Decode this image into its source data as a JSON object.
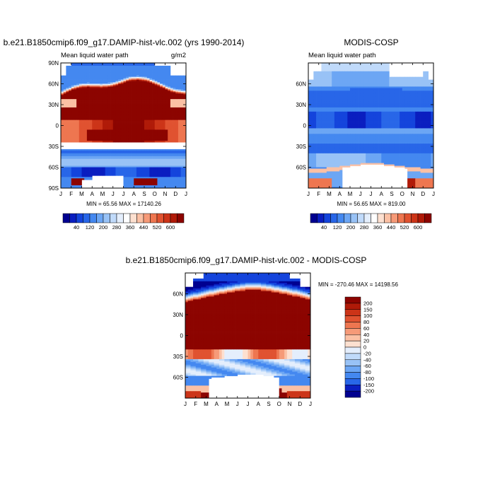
{
  "palette": [
    "#000090",
    "#0a1ec0",
    "#1444dc",
    "#2866e8",
    "#4488f0",
    "#6ca6f4",
    "#98c2f6",
    "#c0dafa",
    "#e4eefc",
    "#ffffff",
    "#fde0d0",
    "#fbc0a4",
    "#f69a78",
    "#ee7650",
    "#e05230",
    "#cc3418",
    "#b01a08",
    "#8c0400"
  ],
  "chart_data": [
    {
      "id": "model",
      "type": "heatmap",
      "title": "b.e21.B1850cmip6.f09_g17.DAMIP-hist-vlc.002 (yrs 1990-2014)",
      "left_label": "Mean liquid water path",
      "right_label": "g/m2",
      "stats": "MIN = 65.56 MAX = 17140.26",
      "x_ticks": [
        "J",
        "F",
        "M",
        "A",
        "M",
        "J",
        "J",
        "A",
        "S",
        "O",
        "N",
        "D",
        "J"
      ],
      "y_ticks": [
        "90N",
        "60N",
        "30N",
        "0",
        "30S",
        "60S",
        "90S"
      ],
      "y_range": [
        -90,
        90
      ],
      "colorbar": {
        "orientation": "horizontal",
        "labels": [
          "40",
          "120",
          "200",
          "280",
          "360",
          "440",
          "520",
          "600"
        ],
        "levels": [
          20,
          40,
          80,
          120,
          160,
          200,
          240,
          280,
          320,
          360,
          400,
          440,
          480,
          520,
          560,
          600,
          640
        ]
      }
    },
    {
      "id": "obs",
      "type": "heatmap",
      "title": "MODIS-COSP",
      "left_label": "Mean liquid water path",
      "stats": "MIN = 56.65 MAX = 819.00",
      "x_ticks": [
        "J",
        "F",
        "M",
        "A",
        "M",
        "J",
        "J",
        "A",
        "S",
        "O",
        "N",
        "D",
        "J"
      ],
      "y_ticks": [
        "60N",
        "30N",
        "0",
        "30S",
        "60S"
      ],
      "y_range": [
        -90,
        90
      ],
      "colorbar": {
        "orientation": "horizontal",
        "labels": [
          "40",
          "120",
          "200",
          "280",
          "360",
          "440",
          "520",
          "600"
        ],
        "levels": [
          20,
          40,
          80,
          120,
          160,
          200,
          240,
          280,
          320,
          360,
          400,
          440,
          480,
          520,
          560,
          600,
          640
        ]
      }
    },
    {
      "id": "diff",
      "type": "heatmap",
      "title": "b.e21.B1850cmip6.f09_g17.DAMIP-hist-vlc.002 - MODIS-COSP",
      "stats": "MIN = -270.46 MAX = 14198.56",
      "x_ticks": [
        "J",
        "F",
        "M",
        "A",
        "M",
        "J",
        "J",
        "A",
        "S",
        "O",
        "N",
        "D",
        "J"
      ],
      "y_ticks": [
        "60N",
        "30N",
        "0",
        "30S",
        "60S"
      ],
      "y_range": [
        -90,
        90
      ],
      "colorbar": {
        "orientation": "vertical",
        "labels": [
          "200",
          "150",
          "100",
          "80",
          "60",
          "40",
          "20",
          "0",
          "-20",
          "-40",
          "-60",
          "-80",
          "-100",
          "-150",
          "-200"
        ],
        "levels": [
          200,
          150,
          100,
          80,
          60,
          40,
          20,
          0,
          -20,
          -40,
          -60,
          -80,
          -100,
          -150,
          -200
        ]
      }
    }
  ]
}
